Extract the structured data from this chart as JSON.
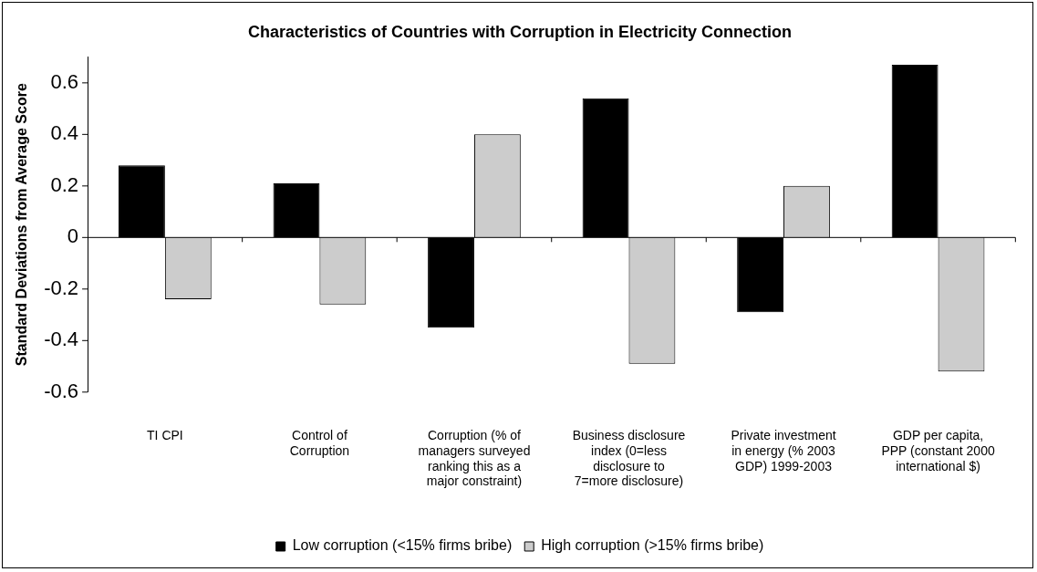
{
  "chart_data": {
    "type": "bar",
    "title": "Characteristics of Countries with Corruption in Electricity Connection",
    "ylabel": "Standard Deviations from Average Score",
    "categories": [
      "TI CPI",
      "Control of Corruption",
      "Corruption (% of managers surveyed ranking this as a major constraint)",
      "Business disclosure index (0=less disclosure to 7=more disclosure)",
      "Private investment in energy (% 2003 GDP) 1999-2003",
      "GDP per capita, PPP (constant 2000 international $)"
    ],
    "series": [
      {
        "name": "Low corruption (<15% firms bribe)",
        "color": "#000000",
        "values": [
          0.28,
          0.21,
          -0.35,
          0.54,
          -0.29,
          0.67
        ]
      },
      {
        "name": "High corruption (>15% firms bribe)",
        "color": "#cccccc",
        "values": [
          -0.24,
          -0.26,
          0.4,
          -0.49,
          0.2,
          -0.52
        ]
      }
    ],
    "ylim": [
      -0.6,
      0.7
    ],
    "yticks": [
      -0.6,
      -0.4,
      -0.2,
      0,
      0.2,
      0.4,
      0.6
    ],
    "legend": "bottom"
  }
}
